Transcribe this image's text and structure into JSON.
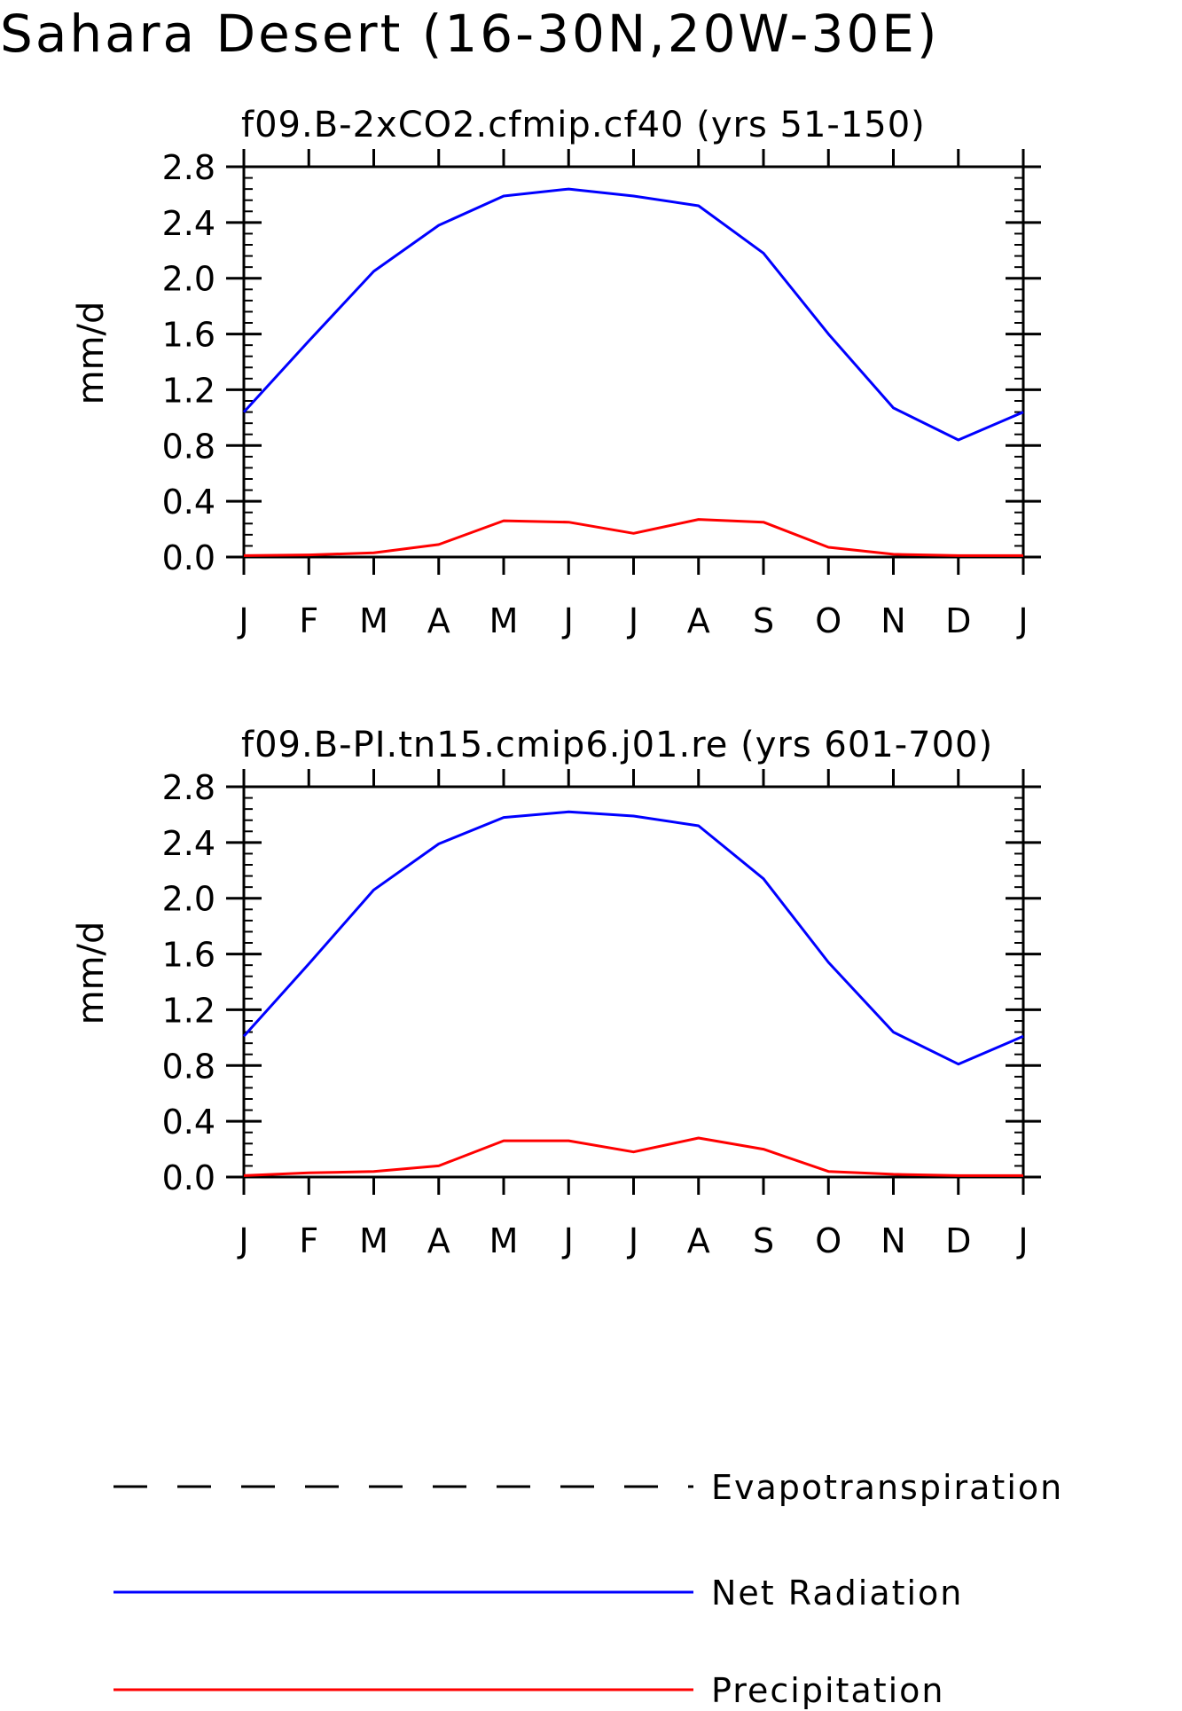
{
  "main_title": "Sahara Desert (16-30N,20W-30E)",
  "legend": {
    "items": [
      {
        "label": "Evapotranspiration",
        "color": "#000000",
        "style": "dashed"
      },
      {
        "label": "Net Radiation",
        "color": "#0000ff",
        "style": "solid"
      },
      {
        "label": "Precipitation",
        "color": "#ff0000",
        "style": "solid"
      }
    ]
  },
  "chart_data": [
    {
      "type": "line",
      "title": "f09.B-2xCO2.cfmip.cf40 (yrs 51-150)",
      "xlabel": "",
      "ylabel": "mm/d",
      "ylim": [
        0,
        2.8
      ],
      "yticks": [
        "0.0",
        "0.4",
        "0.8",
        "1.2",
        "1.6",
        "2.0",
        "2.4",
        "2.8"
      ],
      "categories": [
        "J",
        "F",
        "M",
        "A",
        "M",
        "J",
        "J",
        "A",
        "S",
        "O",
        "N",
        "D",
        "J"
      ],
      "grid": false,
      "series": [
        {
          "name": "Net Radiation",
          "color": "#0000ff",
          "values": [
            1.04,
            1.55,
            2.05,
            2.38,
            2.59,
            2.64,
            2.59,
            2.52,
            2.18,
            1.6,
            1.07,
            0.84,
            1.04
          ]
        },
        {
          "name": "Precipitation",
          "color": "#ff0000",
          "values": [
            0.01,
            0.015,
            0.03,
            0.09,
            0.26,
            0.25,
            0.17,
            0.27,
            0.25,
            0.07,
            0.02,
            0.01,
            0.01
          ]
        }
      ]
    },
    {
      "type": "line",
      "title": "f09.B-PI.tn15.cmip6.j01.re (yrs 601-700)",
      "xlabel": "",
      "ylabel": "mm/d",
      "ylim": [
        0,
        2.8
      ],
      "yticks": [
        "0.0",
        "0.4",
        "0.8",
        "1.2",
        "1.6",
        "2.0",
        "2.4",
        "2.8"
      ],
      "categories": [
        "J",
        "F",
        "M",
        "A",
        "M",
        "J",
        "J",
        "A",
        "S",
        "O",
        "N",
        "D",
        "J"
      ],
      "grid": false,
      "series": [
        {
          "name": "Net Radiation",
          "color": "#0000ff",
          "values": [
            1.01,
            1.53,
            2.06,
            2.39,
            2.58,
            2.62,
            2.59,
            2.52,
            2.14,
            1.54,
            1.04,
            0.81,
            1.01
          ]
        },
        {
          "name": "Precipitation",
          "color": "#ff0000",
          "values": [
            0.01,
            0.03,
            0.04,
            0.08,
            0.26,
            0.26,
            0.18,
            0.28,
            0.2,
            0.04,
            0.02,
            0.01,
            0.01
          ]
        }
      ]
    }
  ]
}
